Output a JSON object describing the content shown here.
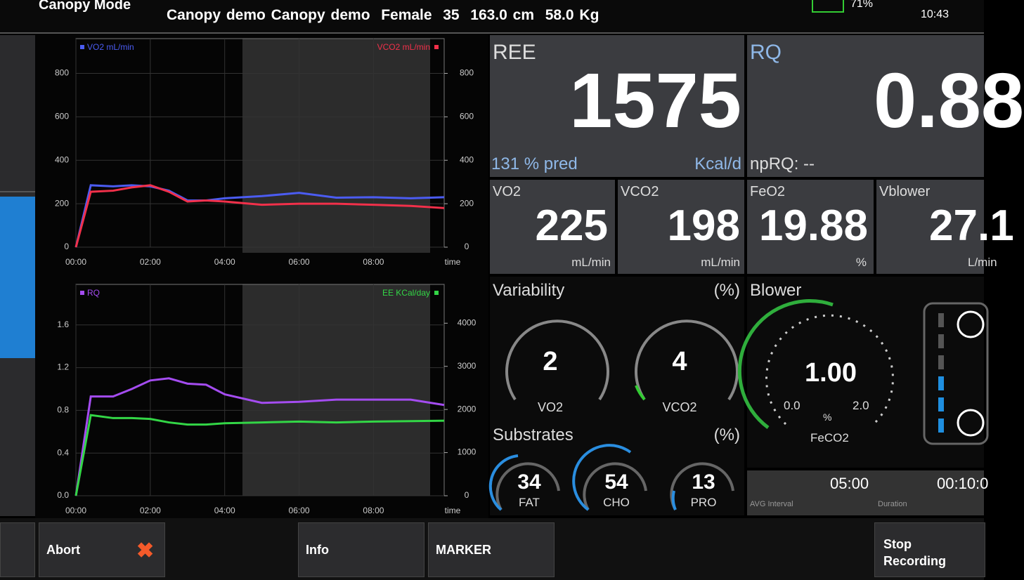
{
  "header": {
    "mode": "Canopy Mode",
    "patient": "Canopy demo Canopy demo",
    "sex": "Female",
    "age": "35",
    "height": "163.0 cm",
    "weight": "58.0 Kg",
    "battery": "71%",
    "time": "10:43"
  },
  "chart_data": [
    {
      "type": "line",
      "xlabel": "time",
      "x": [
        0,
        0.4,
        1,
        1.5,
        2,
        2.5,
        3,
        3.5,
        4,
        5,
        6,
        7,
        8,
        9,
        9.9
      ],
      "xlim": [
        0,
        9.9
      ],
      "xticks": [
        {
          "value": 0,
          "label": "00:00"
        },
        {
          "value": 2,
          "label": "02:00"
        },
        {
          "value": 4,
          "label": "04:00"
        },
        {
          "value": 6,
          "label": "06:00"
        },
        {
          "value": 8,
          "label": "08:00"
        }
      ],
      "ylim": [
        0,
        960
      ],
      "yticks": [
        0,
        200,
        400,
        600,
        800
      ],
      "y2lim": [
        0,
        960
      ],
      "y2ticks": [
        0,
        200,
        400,
        600,
        800
      ],
      "grid": true,
      "series": [
        {
          "name": "VO2 mL/min",
          "color": "#4b5cf2",
          "values": [
            0,
            285,
            280,
            285,
            280,
            260,
            215,
            215,
            225,
            235,
            250,
            228,
            230,
            225,
            230
          ]
        },
        {
          "name": "VCO2 mL/min",
          "color": "#f2304a",
          "axis": "y2",
          "values": [
            0,
            255,
            260,
            275,
            285,
            255,
            210,
            215,
            210,
            195,
            200,
            200,
            195,
            190,
            180
          ]
        }
      ]
    },
    {
      "type": "line",
      "xlabel": "time",
      "x": [
        0,
        0.4,
        1,
        1.5,
        2,
        2.5,
        3,
        3.5,
        4,
        5,
        6,
        7,
        8,
        9,
        9.9
      ],
      "xlim": [
        0,
        9.9
      ],
      "xticks": [
        {
          "value": 0,
          "label": "00:00"
        },
        {
          "value": 2,
          "label": "02:00"
        },
        {
          "value": 4,
          "label": "04:00"
        },
        {
          "value": 6,
          "label": "06:00"
        },
        {
          "value": 8,
          "label": "08:00"
        }
      ],
      "ylim": [
        0,
        1.98
      ],
      "yticks": [
        {
          "value": 0,
          "label": "0.0"
        },
        0.4,
        0.8,
        1.2,
        1.6
      ],
      "y2lim": [
        0,
        4900
      ],
      "y2ticks": [
        0,
        1000,
        2000,
        3000,
        4000
      ],
      "grid": true,
      "series": [
        {
          "name": "RQ",
          "color": "#a44cf0",
          "values": [
            0,
            0.93,
            0.93,
            1.0,
            1.08,
            1.1,
            1.05,
            1.04,
            0.95,
            0.87,
            0.88,
            0.9,
            0.9,
            0.9,
            0.85
          ]
        },
        {
          "name": "EE KCal/day",
          "color": "#33d646",
          "axis": "y2",
          "values": [
            0,
            1870,
            1800,
            1800,
            1780,
            1700,
            1650,
            1650,
            1680,
            1700,
            1720,
            1700,
            1720,
            1730,
            1740
          ]
        }
      ]
    }
  ],
  "ree": {
    "label": "REE",
    "value": "1575",
    "pred": "131 % pred",
    "unit": "Kcal/d"
  },
  "rq": {
    "label": "RQ",
    "value": "0.88",
    "np": "npRQ: --"
  },
  "vo2": {
    "label": "VO2",
    "value": "225",
    "unit": "mL/min"
  },
  "vco2": {
    "label": "VCO2",
    "value": "198",
    "unit": "mL/min"
  },
  "feo2": {
    "label": "FeO2",
    "value": "19.88",
    "unit": "%"
  },
  "vblower": {
    "label": "Vblower",
    "value": "27.1",
    "unit": "L/min"
  },
  "variability": {
    "title": "Variability",
    "unit": "(%)",
    "gauges": [
      {
        "value": "2",
        "label": "VO2"
      },
      {
        "value": "4",
        "label": "VCO2"
      }
    ]
  },
  "substrates": {
    "title": "Substrates",
    "unit": "(%)",
    "items": [
      {
        "value": "34",
        "label": "FAT"
      },
      {
        "value": "54",
        "label": "CHO"
      },
      {
        "value": "13",
        "label": "PRO"
      }
    ]
  },
  "blower": {
    "title": "Blower",
    "value": "1.00",
    "min": "0.0",
    "max": "2.0",
    "unit": "%",
    "label": "FeCO2",
    "interval": "05:00",
    "interval_label": "AVG Interval",
    "duration": "00:10:0",
    "duration_label": "Duration"
  },
  "buttons": {
    "abort": "Abort",
    "info": "Info",
    "marker": "MARKER",
    "stop": "Stop Recording"
  }
}
